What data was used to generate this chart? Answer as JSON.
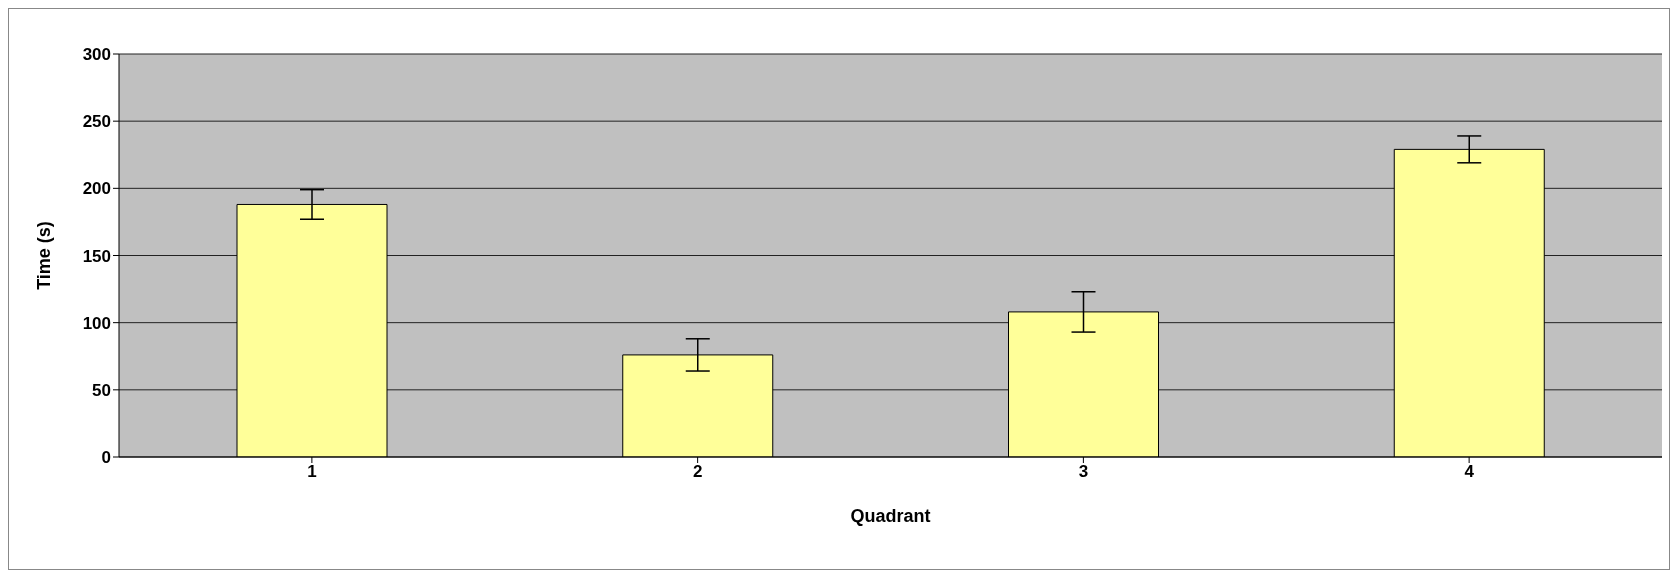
{
  "chart_data": {
    "type": "bar",
    "xlabel": "Quadrant",
    "ylabel": "Time (s)",
    "categories": [
      "1",
      "2",
      "3",
      "4"
    ],
    "values": [
      188,
      76,
      108,
      229
    ],
    "errors": [
      11,
      12,
      15,
      10
    ],
    "color": "#ffff99",
    "ylim": [
      0,
      300
    ],
    "yticks": [
      0,
      50,
      100,
      150,
      200,
      250,
      300
    ],
    "grid": "y"
  }
}
